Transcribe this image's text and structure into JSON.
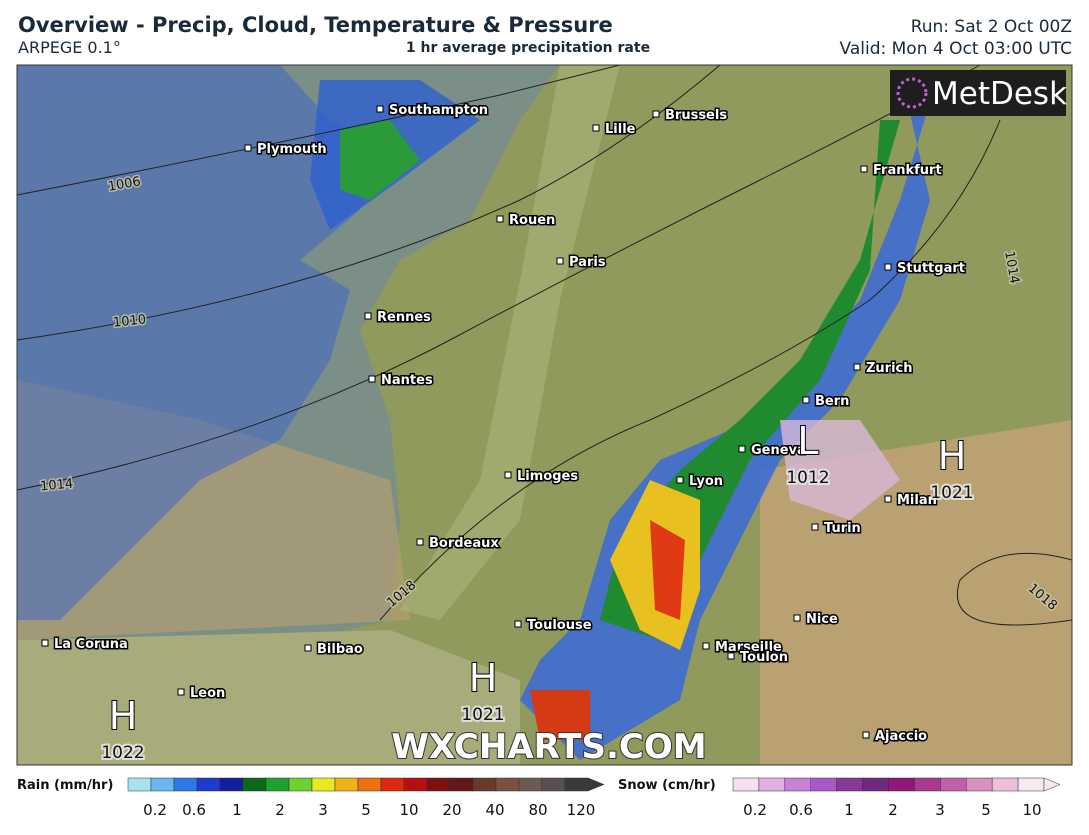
{
  "header": {
    "title": "Overview - Precip, Cloud, Temperature & Pressure",
    "model": "ARPEGE 0.1°",
    "subtitle": "1 hr average precipitation rate",
    "run": "Run: Sat 2 Oct 00Z",
    "valid": "Valid: Mon 4 Oct 03:00 UTC"
  },
  "logo": "MetDesk",
  "watermark": "WXCHARTS.COM",
  "cities": [
    "Southampton",
    "Plymouth",
    "Lille",
    "Brussels",
    "Frankfurt",
    "Rouen",
    "Paris",
    "Stuttgart",
    "Rennes",
    "Nantes",
    "Zurich",
    "Bern",
    "Geneva",
    "Lyon",
    "Limoges",
    "Milan",
    "Turin",
    "Bordeaux",
    "Nice",
    "Toulouse",
    "Marseille",
    "Toulon",
    "La Coruna",
    "Bilbao",
    "Leon",
    "Ajaccio"
  ],
  "isobar_labels": [
    1006,
    1010,
    1014,
    1018,
    1014,
    1018
  ],
  "pressure_centers": [
    {
      "label": "H",
      "value": 1022
    },
    {
      "label": "H",
      "value": 1021
    },
    {
      "label": "L",
      "value": 1012
    },
    {
      "label": "H",
      "value": 1021
    }
  ],
  "rain_legend": {
    "title": "Rain (mm/hr)",
    "ticks": [
      0.2,
      0.6,
      1,
      2,
      3,
      5,
      10,
      20,
      40,
      80,
      120
    ]
  },
  "snow_legend": {
    "title": "Snow (cm/hr)",
    "ticks": [
      0.2,
      0.6,
      1,
      2,
      3,
      5,
      10
    ]
  }
}
